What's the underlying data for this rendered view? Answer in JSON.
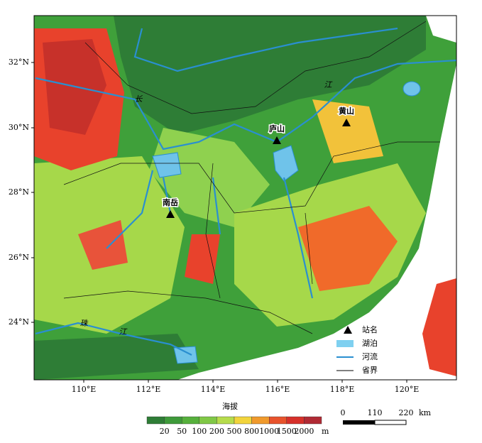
{
  "map": {
    "lat_labels": [
      "32°N",
      "30°N",
      "28°N",
      "26°N",
      "24°N"
    ],
    "lon_labels": [
      "110°E",
      "112°E",
      "114°E",
      "116°E",
      "118°E",
      "120°E"
    ],
    "stations": [
      "黄山",
      "庐山",
      "南岳"
    ],
    "river_labels": [
      "长",
      "江",
      "珠",
      "江"
    ],
    "legend": [
      "站名",
      "湖泊",
      "河流",
      "省界"
    ],
    "colorbar": {
      "title": "海拔",
      "labels": [
        "20",
        "50",
        "100",
        "200",
        "500",
        "800",
        "1000",
        "1500",
        "2000"
      ],
      "unit": "m"
    },
    "scale": {
      "labels": [
        "0",
        "110",
        "220"
      ],
      "unit": "km"
    }
  }
}
